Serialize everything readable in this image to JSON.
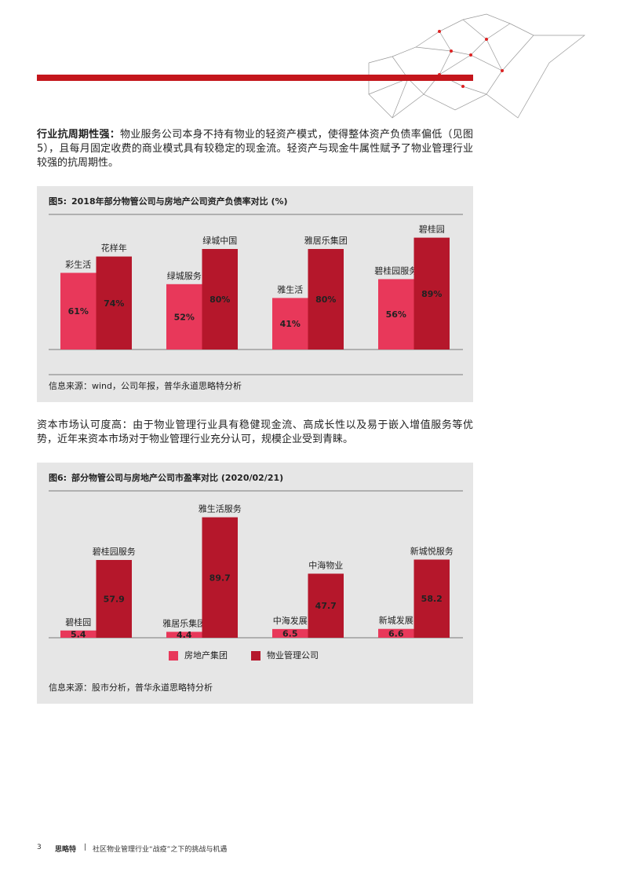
{
  "paragraphs": [
    {
      "lead": "行业抗周期性强：",
      "text": "物业服务公司本身不持有物业的轻资产模式，使得整体资产负债率偏低（见图5），且每月固定收费的商业模式具有较稳定的现金流。轻资产与现金牛属性赋予了物业管理行业较强的抗周期性。"
    },
    {
      "text": "资本市场认可度高：由于物业管理行业具有稳健现金流、高成长性以及易于嵌入增值服务等优势，近年来资本市场对于物业管理行业充分认可，规模企业受到青睐。"
    }
  ],
  "chart_data": [
    {
      "type": "bar",
      "label": "图5:",
      "title": "2018年部分物管公司与房地产公司资产负债率对比 (%)",
      "source": "信息来源：wind，公司年报，普华永道思略特分析",
      "series": [
        {
          "color": "#e8385a",
          "values": [
            61,
            52,
            41,
            56
          ],
          "value_labels": [
            "61%",
            "52%",
            "41%",
            "56%"
          ],
          "labels": [
            "彩生活",
            "绿城服务",
            "雅生活",
            "碧桂园服务"
          ]
        },
        {
          "color": "#b5172b",
          "values": [
            74,
            80,
            80,
            89
          ],
          "value_labels": [
            "74%",
            "80%",
            "80%",
            "89%"
          ],
          "labels": [
            "花样年",
            "绿城中国",
            "雅居乐集团",
            "碧桂园"
          ]
        }
      ]
    },
    {
      "type": "bar",
      "label": "图6:",
      "title": "部分物管公司与房地产公司市盈率对比 (2020/02/21)",
      "source": "信息来源：股市分析，普华永道思略特分析",
      "series": [
        {
          "name": "房地产集团",
          "color": "#e8385a",
          "values": [
            5.4,
            4.4,
            6.5,
            6.6
          ],
          "labels": [
            "碧桂园",
            "雅居乐集团",
            "中海发展",
            "新城发展"
          ]
        },
        {
          "name": "物业管理公司",
          "color": "#b5172b",
          "values": [
            57.9,
            89.7,
            47.7,
            58.2
          ],
          "labels": [
            "碧桂园服务",
            "雅生活服务",
            "中海物业",
            "新城悦服务"
          ]
        }
      ]
    }
  ],
  "footer": {
    "page": "3",
    "brand": "思略特",
    "separator": "|",
    "title": "社区物业管理行业“战疫”之下的挑战与机遇"
  }
}
